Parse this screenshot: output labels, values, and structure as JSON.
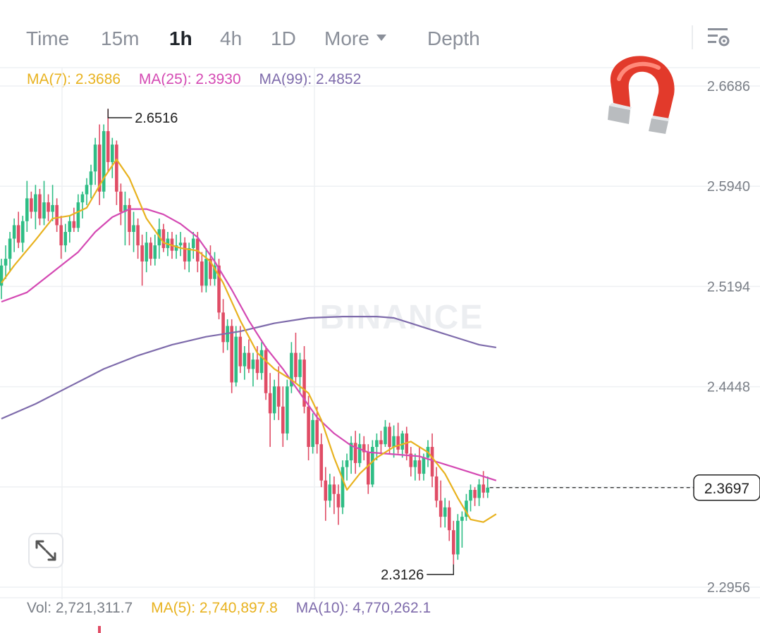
{
  "toolbar": {
    "tabs": [
      {
        "label": "Time",
        "active": false
      },
      {
        "label": "15m",
        "active": false
      },
      {
        "label": "1h",
        "active": true
      },
      {
        "label": "4h",
        "active": false
      },
      {
        "label": "1D",
        "active": false
      },
      {
        "label": "More",
        "active": false
      },
      {
        "label": "Depth",
        "active": false
      }
    ],
    "settings_icon": "chart-settings-icon"
  },
  "indicators": {
    "ma7": {
      "label": "MA(7): 2.3686",
      "color": "#e8b21f"
    },
    "ma25": {
      "label": "MA(25): 2.3930",
      "color": "#d449b3"
    },
    "ma99": {
      "label": "MA(99): 2.4852",
      "color": "#7e6bab"
    }
  },
  "volume": {
    "vol_label": "Vol: 2,721,311.7",
    "ma5_label": "MA(5): 2,740,897.8",
    "ma10_label": "MA(10): 4,770,262.1"
  },
  "watermark": "BINANCE",
  "icons": {
    "magnet": "magnet-icon",
    "expand": "expand-icon"
  },
  "colors": {
    "up": "#2ebd85",
    "down": "#e04c65",
    "grid": "#eef0f3",
    "axis_text": "#7a7f87"
  },
  "chart_data": {
    "type": "candlestick",
    "interval": "1h",
    "y_ticks": [
      2.6686,
      2.594,
      2.5194,
      2.4448,
      2.3702,
      2.2956
    ],
    "ylim": [
      2.2956,
      2.6686
    ],
    "last_price": "2.3697",
    "high_label": "2.6516",
    "low_label": "2.3126",
    "candles": [
      [
        2.52,
        2.54,
        2.51,
        2.535
      ],
      [
        2.535,
        2.55,
        2.525,
        2.54
      ],
      [
        2.54,
        2.56,
        2.53,
        2.555
      ],
      [
        2.555,
        2.57,
        2.545,
        2.565
      ],
      [
        2.565,
        2.575,
        2.548,
        2.552
      ],
      [
        2.552,
        2.572,
        2.545,
        2.568
      ],
      [
        2.568,
        2.598,
        2.56,
        2.585
      ],
      [
        2.585,
        2.59,
        2.57,
        2.575
      ],
      [
        2.575,
        2.595,
        2.562,
        2.588
      ],
      [
        2.588,
        2.592,
        2.565,
        2.57
      ],
      [
        2.57,
        2.598,
        2.565,
        2.582
      ],
      [
        2.582,
        2.588,
        2.568,
        2.575
      ],
      [
        2.575,
        2.595,
        2.568,
        2.58
      ],
      [
        2.58,
        2.585,
        2.56,
        2.565
      ],
      [
        2.565,
        2.572,
        2.54,
        2.55
      ],
      [
        2.55,
        2.566,
        2.545,
        2.56
      ],
      [
        2.56,
        2.572,
        2.552,
        2.568
      ],
      [
        2.568,
        2.578,
        2.56,
        2.563
      ],
      [
        2.563,
        2.588,
        2.56,
        2.582
      ],
      [
        2.582,
        2.59,
        2.57,
        2.588
      ],
      [
        2.588,
        2.6,
        2.58,
        2.595
      ],
      [
        2.595,
        2.61,
        2.585,
        2.605
      ],
      [
        2.605,
        2.63,
        2.595,
        2.625
      ],
      [
        2.625,
        2.64,
        2.58,
        2.59
      ],
      [
        2.59,
        2.64,
        2.585,
        2.635
      ],
      [
        2.635,
        2.6516,
        2.605,
        2.612
      ],
      [
        2.612,
        2.63,
        2.6,
        2.625
      ],
      [
        2.625,
        2.628,
        2.58,
        2.59
      ],
      [
        2.59,
        2.596,
        2.565,
        2.575
      ],
      [
        2.575,
        2.59,
        2.55,
        2.58
      ],
      [
        2.58,
        2.585,
        2.55,
        2.56
      ],
      [
        2.56,
        2.575,
        2.545,
        2.565
      ],
      [
        2.565,
        2.57,
        2.54,
        2.55
      ],
      [
        2.55,
        2.558,
        2.52,
        2.538
      ],
      [
        2.538,
        2.56,
        2.53,
        2.552
      ],
      [
        2.552,
        2.556,
        2.535,
        2.54
      ],
      [
        2.54,
        2.558,
        2.535,
        2.55
      ],
      [
        2.55,
        2.57,
        2.54,
        2.562
      ],
      [
        2.562,
        2.566,
        2.545,
        2.548
      ],
      [
        2.548,
        2.56,
        2.542,
        2.555
      ],
      [
        2.555,
        2.56,
        2.54,
        2.546
      ],
      [
        2.546,
        2.558,
        2.54,
        2.55
      ],
      [
        2.55,
        2.56,
        2.542,
        2.552
      ],
      [
        2.552,
        2.556,
        2.532,
        2.538
      ],
      [
        2.538,
        2.552,
        2.53,
        2.548
      ],
      [
        2.548,
        2.56,
        2.54,
        2.555
      ],
      [
        2.555,
        2.56,
        2.53,
        2.538
      ],
      [
        2.538,
        2.545,
        2.515,
        2.52
      ],
      [
        2.52,
        2.548,
        2.515,
        2.54
      ],
      [
        2.54,
        2.55,
        2.52,
        2.525
      ],
      [
        2.525,
        2.545,
        2.52,
        2.535
      ],
      [
        2.535,
        2.54,
        2.495,
        2.5
      ],
      [
        2.5,
        2.51,
        2.47,
        2.478
      ],
      [
        2.478,
        2.495,
        2.472,
        2.49
      ],
      [
        2.49,
        2.495,
        2.44,
        2.448
      ],
      [
        2.448,
        2.49,
        2.445,
        2.482
      ],
      [
        2.482,
        2.49,
        2.455,
        2.46
      ],
      [
        2.46,
        2.475,
        2.45,
        2.47
      ],
      [
        2.47,
        2.48,
        2.455,
        2.458
      ],
      [
        2.458,
        2.47,
        2.445,
        2.465
      ],
      [
        2.465,
        2.475,
        2.45,
        2.455
      ],
      [
        2.455,
        2.478,
        2.45,
        2.472
      ],
      [
        2.472,
        2.475,
        2.435,
        2.44
      ],
      [
        2.44,
        2.455,
        2.4,
        2.425
      ],
      [
        2.425,
        2.45,
        2.42,
        2.445
      ],
      [
        2.445,
        2.46,
        2.42,
        2.43
      ],
      [
        2.43,
        2.445,
        2.4,
        2.41
      ],
      [
        2.41,
        2.45,
        2.405,
        2.445
      ],
      [
        2.445,
        2.478,
        2.44,
        2.47
      ],
      [
        2.47,
        2.485,
        2.448,
        2.452
      ],
      [
        2.452,
        2.47,
        2.44,
        2.465
      ],
      [
        2.465,
        2.475,
        2.425,
        2.43
      ],
      [
        2.43,
        2.438,
        2.39,
        2.4
      ],
      [
        2.4,
        2.425,
        2.395,
        2.42
      ],
      [
        2.42,
        2.43,
        2.395,
        2.402
      ],
      [
        2.402,
        2.41,
        2.37,
        2.375
      ],
      [
        2.375,
        2.385,
        2.345,
        2.36
      ],
      [
        2.36,
        2.38,
        2.355,
        2.372
      ],
      [
        2.372,
        2.378,
        2.35,
        2.365
      ],
      [
        2.365,
        2.372,
        2.342,
        2.355
      ],
      [
        2.355,
        2.39,
        2.35,
        2.385
      ],
      [
        2.385,
        2.395,
        2.375,
        2.39
      ],
      [
        2.39,
        2.408,
        2.38,
        2.403
      ],
      [
        2.403,
        2.412,
        2.38,
        2.388
      ],
      [
        2.388,
        2.41,
        2.385,
        2.402
      ],
      [
        2.402,
        2.408,
        2.39,
        2.396
      ],
      [
        2.396,
        2.402,
        2.365,
        2.372
      ],
      [
        2.372,
        2.405,
        2.37,
        2.4
      ],
      [
        2.4,
        2.41,
        2.39,
        2.405
      ],
      [
        2.405,
        2.412,
        2.395,
        2.402
      ],
      [
        2.402,
        2.42,
        2.4,
        2.415
      ],
      [
        2.415,
        2.418,
        2.395,
        2.4
      ],
      [
        2.4,
        2.416,
        2.392,
        2.408
      ],
      [
        2.408,
        2.418,
        2.395,
        2.398
      ],
      [
        2.398,
        2.412,
        2.392,
        2.41
      ],
      [
        2.41,
        2.415,
        2.39,
        2.395
      ],
      [
        2.395,
        2.4,
        2.378,
        2.385
      ],
      [
        2.385,
        2.395,
        2.375,
        2.39
      ],
      [
        2.39,
        2.4,
        2.375,
        2.38
      ],
      [
        2.38,
        2.395,
        2.375,
        2.392
      ],
      [
        2.392,
        2.405,
        2.385,
        2.4
      ],
      [
        2.4,
        2.41,
        2.37,
        2.378
      ],
      [
        2.378,
        2.385,
        2.355,
        2.36
      ],
      [
        2.36,
        2.375,
        2.34,
        2.348
      ],
      [
        2.348,
        2.362,
        2.34,
        2.355
      ],
      [
        2.355,
        2.36,
        2.33,
        2.338
      ],
      [
        2.338,
        2.345,
        2.3126,
        2.32
      ],
      [
        2.32,
        2.35,
        2.316,
        2.345
      ],
      [
        2.345,
        2.352,
        2.325,
        2.348
      ],
      [
        2.348,
        2.365,
        2.345,
        2.36
      ],
      [
        2.36,
        2.372,
        2.352,
        2.368
      ],
      [
        2.368,
        2.37,
        2.356,
        2.362
      ],
      [
        2.362,
        2.376,
        2.356,
        2.372
      ],
      [
        2.372,
        2.382,
        2.362,
        2.366
      ],
      [
        2.366,
        2.378,
        2.362,
        2.3697
      ]
    ],
    "ma7": [
      [
        0,
        2.522
      ],
      [
        3,
        2.535
      ],
      [
        8,
        2.554
      ],
      [
        12,
        2.57
      ],
      [
        16,
        2.572
      ],
      [
        20,
        2.578
      ],
      [
        24,
        2.6
      ],
      [
        27,
        2.614
      ],
      [
        30,
        2.6
      ],
      [
        34,
        2.57
      ],
      [
        38,
        2.552
      ],
      [
        42,
        2.548
      ],
      [
        46,
        2.546
      ],
      [
        49,
        2.538
      ],
      [
        52,
        2.522
      ],
      [
        56,
        2.494
      ],
      [
        60,
        2.47
      ],
      [
        64,
        2.458
      ],
      [
        68,
        2.45
      ],
      [
        72,
        2.44
      ],
      [
        75,
        2.42
      ],
      [
        78,
        2.392
      ],
      [
        81,
        2.368
      ],
      [
        84,
        2.38
      ],
      [
        88,
        2.392
      ],
      [
        92,
        2.4
      ],
      [
        96,
        2.404
      ],
      [
        100,
        2.396
      ],
      [
        104,
        2.38
      ],
      [
        107,
        2.362
      ],
      [
        110,
        2.346
      ],
      [
        113,
        2.344
      ],
      [
        116,
        2.35
      ]
    ],
    "ma25": [
      [
        0,
        2.508
      ],
      [
        6,
        2.515
      ],
      [
        12,
        2.53
      ],
      [
        18,
        2.545
      ],
      [
        22,
        2.56
      ],
      [
        26,
        2.571
      ],
      [
        30,
        2.577
      ],
      [
        34,
        2.577
      ],
      [
        38,
        2.573
      ],
      [
        42,
        2.566
      ],
      [
        46,
        2.556
      ],
      [
        50,
        2.538
      ],
      [
        54,
        2.517
      ],
      [
        58,
        2.494
      ],
      [
        62,
        2.474
      ],
      [
        66,
        2.458
      ],
      [
        70,
        2.44
      ],
      [
        74,
        2.422
      ],
      [
        78,
        2.41
      ],
      [
        82,
        2.401
      ],
      [
        86,
        2.396
      ],
      [
        90,
        2.395
      ],
      [
        94,
        2.394
      ],
      [
        98,
        2.393
      ],
      [
        102,
        2.389
      ],
      [
        106,
        2.385
      ],
      [
        110,
        2.381
      ],
      [
        114,
        2.377
      ],
      [
        116,
        2.375
      ]
    ],
    "ma99": [
      [
        0,
        2.421
      ],
      [
        8,
        2.432
      ],
      [
        16,
        2.445
      ],
      [
        24,
        2.458
      ],
      [
        32,
        2.468
      ],
      [
        40,
        2.476
      ],
      [
        48,
        2.482
      ],
      [
        56,
        2.486
      ],
      [
        64,
        2.492
      ],
      [
        72,
        2.496
      ],
      [
        80,
        2.497
      ],
      [
        88,
        2.497
      ],
      [
        92,
        2.496
      ],
      [
        96,
        2.492
      ],
      [
        100,
        2.488
      ],
      [
        104,
        2.484
      ],
      [
        108,
        2.48
      ],
      [
        112,
        2.476
      ],
      [
        116,
        2.474
      ]
    ]
  }
}
